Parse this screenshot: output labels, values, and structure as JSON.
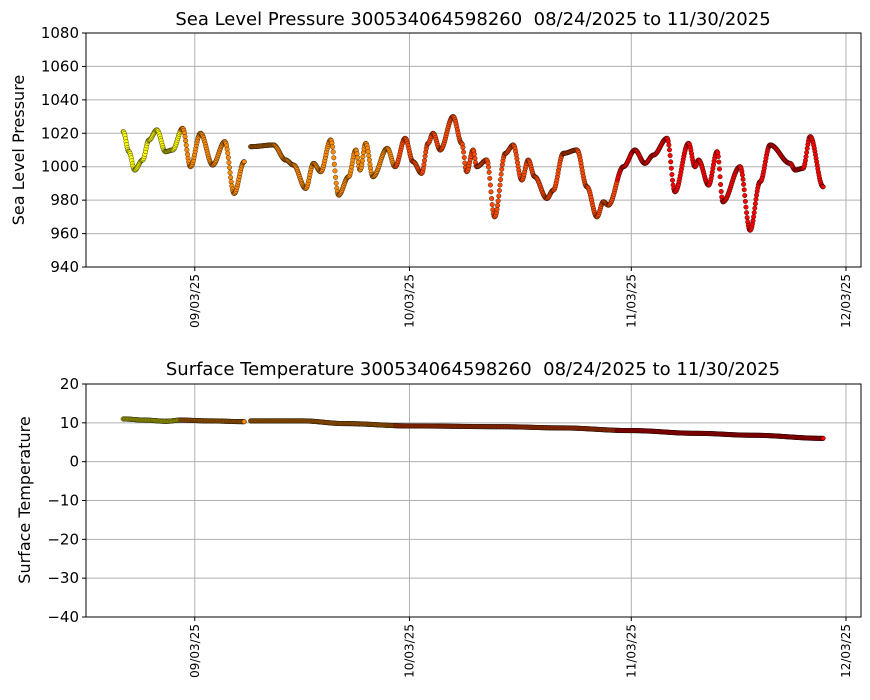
{
  "chart_data": [
    {
      "type": "scatter",
      "title": "Sea Level Pressure 300534064598260  08/24/2025 to 11/30/2025",
      "xlabel": "",
      "ylabel": "Sea Level Pressure",
      "x_units": "days since 08/24/2025",
      "xlim": [
        -5.2,
        103.1
      ],
      "ylim": [
        940,
        1080
      ],
      "yticks": [
        940,
        960,
        980,
        1000,
        1020,
        1040,
        1060,
        1080
      ],
      "xticks": [
        {
          "day": 10,
          "label": "09/03/25"
        },
        {
          "day": 40,
          "label": "10/03/25"
        },
        {
          "day": 71,
          "label": "11/03/25"
        },
        {
          "day": 101,
          "label": "12/03/25"
        }
      ],
      "grid": true,
      "color_by_month": {
        "Aug": "#ffff00",
        "Sep": "#ff8c00",
        "Oct": "#ff4a00",
        "Nov": "#ff0000"
      },
      "segments": [
        [
          [
            0,
            1021
          ],
          [
            0.8,
            1009
          ],
          [
            1.6,
            998
          ],
          [
            2.7,
            1004
          ],
          [
            3.6,
            1016
          ],
          [
            4.7,
            1022
          ],
          [
            5.9,
            1009
          ],
          [
            6.9,
            1010
          ],
          [
            8.3,
            1023
          ],
          [
            9.4,
            1000
          ],
          [
            10.8,
            1020
          ],
          [
            12.5,
            1001
          ],
          [
            14.2,
            1015
          ],
          [
            15.5,
            984
          ],
          [
            16.9,
            1003
          ]
        ],
        [
          [
            17.8,
            1012
          ],
          [
            21.0,
            1013
          ],
          [
            22.7,
            1004
          ],
          [
            23.8,
            1001
          ],
          [
            25.5,
            987
          ],
          [
            26.6,
            1002
          ],
          [
            27.6,
            997
          ],
          [
            29.0,
            1016
          ],
          [
            30.1,
            983
          ],
          [
            31.5,
            994
          ],
          [
            32.5,
            1010
          ],
          [
            33.1,
            998
          ],
          [
            33.9,
            1014
          ],
          [
            34.9,
            994
          ],
          [
            36.9,
            1011
          ],
          [
            38.0,
            1000
          ],
          [
            39.4,
            1017
          ],
          [
            40.5,
            1003
          ],
          [
            41.7,
            996
          ],
          [
            42.6,
            1014
          ],
          [
            43.3,
            1020
          ],
          [
            44.3,
            1010
          ],
          [
            46.1,
            1030
          ],
          [
            47.3,
            1014
          ],
          [
            48.0,
            997
          ],
          [
            48.9,
            1010
          ],
          [
            49.4,
            1000
          ],
          [
            50.8,
            1004
          ],
          [
            51.9,
            970
          ],
          [
            53.4,
            1008
          ],
          [
            54.5,
            1013
          ],
          [
            55.7,
            992
          ],
          [
            56.6,
            1004
          ],
          [
            57.5,
            994
          ],
          [
            59.2,
            981
          ],
          [
            60.1,
            986
          ],
          [
            61.5,
            1008
          ],
          [
            63.4,
            1010
          ],
          [
            64.8,
            988
          ],
          [
            66.2,
            970
          ],
          [
            67.1,
            979
          ],
          [
            67.8,
            977
          ],
          [
            69.9,
            1000
          ],
          [
            71.5,
            1010
          ],
          [
            72.9,
            1002
          ],
          [
            74.1,
            1007
          ],
          [
            76.0,
            1017
          ],
          [
            77.1,
            985
          ],
          [
            79.0,
            1014
          ],
          [
            79.9,
            1000
          ],
          [
            80.4,
            1004
          ],
          [
            81.8,
            989
          ],
          [
            83.0,
            1009
          ],
          [
            83.8,
            979
          ],
          [
            86.2,
            1000
          ],
          [
            87.6,
            962
          ],
          [
            89.0,
            991
          ],
          [
            90.4,
            1013
          ],
          [
            93.2,
            1002
          ],
          [
            93.9,
            998
          ],
          [
            95.0,
            999
          ],
          [
            96.0,
            1018
          ],
          [
            97.8,
            988
          ]
        ]
      ]
    },
    {
      "type": "scatter",
      "title": "Surface Temperature 300534064598260  08/24/2025 to 11/30/2025",
      "xlabel": "",
      "ylabel": "Surface Temperature",
      "x_units": "days since 08/24/2025",
      "xlim": [
        -5.2,
        103.1
      ],
      "ylim": [
        -40,
        20
      ],
      "yticks": [
        -40,
        -30,
        -20,
        -10,
        0,
        10,
        20
      ],
      "ytick_labels": [
        "−40",
        "−30",
        "−20",
        "−10",
        "0",
        "10",
        "20"
      ],
      "xticks": [
        {
          "day": 10,
          "label": "09/03/25"
        },
        {
          "day": 40,
          "label": "10/03/25"
        },
        {
          "day": 71,
          "label": "11/03/25"
        },
        {
          "day": 101,
          "label": "12/03/25"
        }
      ],
      "grid": true,
      "color_by_month": {
        "Aug": "#ffff00",
        "Sep": "#ff8c00",
        "Oct": "#ff4a00",
        "Nov": "#ff0000"
      },
      "segments": [
        [
          [
            0,
            11
          ],
          [
            3,
            10.7
          ],
          [
            6,
            10.4
          ],
          [
            8,
            10.7
          ],
          [
            12,
            10.5
          ],
          [
            16.9,
            10.3
          ]
        ],
        [
          [
            17.8,
            10.5
          ],
          [
            25,
            10.5
          ],
          [
            31,
            9.8
          ],
          [
            40,
            9.2
          ],
          [
            53,
            9.0
          ],
          [
            61,
            8.7
          ],
          [
            71,
            8.0
          ],
          [
            80,
            7.3
          ],
          [
            88,
            6.8
          ],
          [
            97.8,
            6.0
          ]
        ]
      ]
    }
  ]
}
